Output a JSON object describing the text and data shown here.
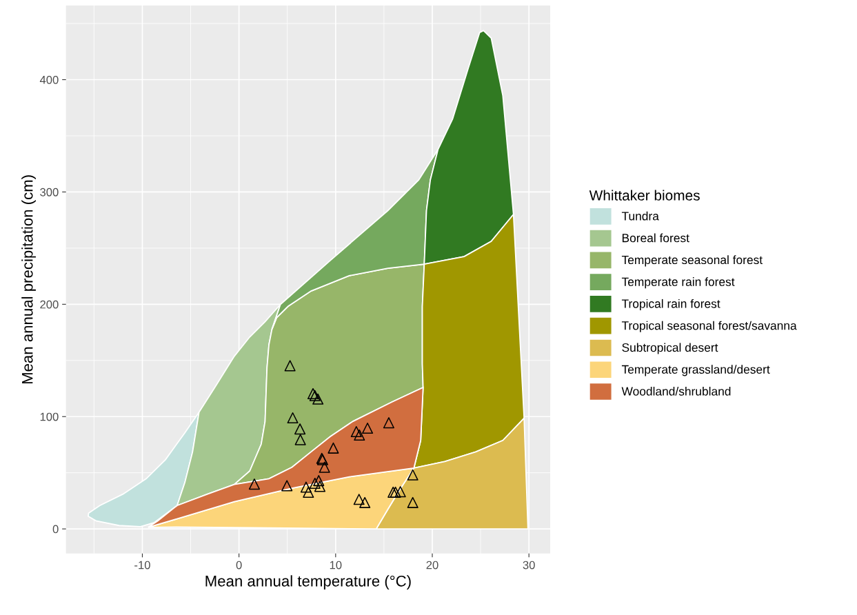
{
  "chart_data": {
    "type": "area",
    "xlabel": "Mean annual temperature (°C)",
    "ylabel": "Mean annual precipitation (cm)",
    "legend_title": "Whittaker biomes",
    "xlim": [
      -17.9,
      32.2
    ],
    "ylim": [
      -21.9,
      466
    ],
    "xticks": [
      -10,
      0,
      10,
      20,
      30
    ],
    "yticks": [
      0,
      100,
      200,
      300,
      400
    ],
    "grid": true,
    "legend": "right",
    "series": [
      {
        "name": "Tundra",
        "color": "#c1e1dd",
        "x": [
          -15.56,
          -14.4,
          -12,
          -9.6,
          -7.6,
          -5.6,
          -4.13,
          -4.8,
          -5.6,
          -6.4,
          -8.8,
          -10.2,
          -12.4,
          -14.8,
          -15.6
        ],
        "values": [
          14,
          20.8,
          31,
          44.7,
          61.7,
          85.6,
          104,
          68.6,
          41.3,
          20.8,
          5.5,
          2,
          3,
          7.2,
          11.3
        ]
      },
      {
        "name": "Boreal forest",
        "color": "#a5c790",
        "x": [
          -4.13,
          -2.46,
          -0.48,
          1.11,
          2.7,
          4.29,
          3.41,
          3.1,
          2.9,
          2.7,
          2.3,
          1.11,
          -0.48,
          -3.25,
          -6.4,
          -5.6,
          -4.8
        ],
        "values": [
          104,
          126.5,
          153.8,
          170.9,
          184.5,
          199.9,
          177.7,
          164,
          143.6,
          95.8,
          75.4,
          51.5,
          39.6,
          31,
          20.8,
          41.3,
          68.6
        ]
      },
      {
        "name": "Temperate seasonal forest",
        "color": "#97b669",
        "x": [
          3.41,
          3.89,
          5.08,
          7.46,
          11.4,
          15.4,
          19.17,
          18.97,
          18.97,
          19.05,
          15.8,
          11.8,
          9.44,
          7.46,
          5.48,
          3.1,
          -0.48,
          1.11,
          2.3,
          2.7,
          2.9,
          3.1
        ],
        "values": [
          177.7,
          188,
          198.2,
          211.8,
          225.4,
          232,
          235.7,
          198,
          147,
          125.9,
          112.9,
          95.8,
          82.2,
          68.6,
          54.9,
          44.7,
          39.6,
          51.5,
          75.4,
          95.8,
          143.6,
          164
        ]
      },
      {
        "name": "Temperate rain forest",
        "color": "#75a95e",
        "x": [
          4.29,
          9.44,
          15.4,
          18.6,
          20.6,
          19.8,
          19.4,
          19.17,
          15.4,
          11.4,
          7.46,
          5.08,
          3.89,
          3.41
        ],
        "values": [
          199.9,
          239,
          283.4,
          310.7,
          338,
          310.7,
          283.4,
          235.7,
          232,
          225.4,
          211.8,
          198.2,
          188,
          177.7
        ]
      },
      {
        "name": "Tropical rain forest",
        "color": "#317a22",
        "x": [
          20.6,
          22.1,
          23.7,
          24.9,
          25.3,
          26.1,
          27.3,
          28.4,
          26.1,
          23.3,
          19.17,
          19.4,
          19.8
        ],
        "values": [
          338,
          365,
          409.6,
          442,
          443.7,
          437,
          385.7,
          280,
          256,
          242.5,
          235.7,
          283.4,
          310.7
        ]
      },
      {
        "name": "Tropical seasonal forest/savanna",
        "color": "#a09700",
        "x": [
          19.17,
          23.3,
          26.1,
          28.4,
          29.5,
          27.3,
          24.5,
          21.3,
          18.1,
          18.8,
          19.05,
          18.97,
          18.97
        ],
        "values": [
          235.7,
          242.5,
          256,
          280,
          98.6,
          78.8,
          68.6,
          60,
          54.2,
          78.8,
          125.9,
          147,
          198
        ]
      },
      {
        "name": "Subtropical desert",
        "color": "#dcbb50",
        "x": [
          18.1,
          21.3,
          24.5,
          27.3,
          29.5,
          29.9,
          14.2,
          15.4,
          16.6
        ],
        "values": [
          54.2,
          60,
          68.6,
          78.8,
          98.6,
          0,
          0,
          17.4,
          34.4
        ]
      },
      {
        "name": "Temperate grassland/desert",
        "color": "#fcd57a",
        "x": [
          -9.4,
          -6.43,
          -0.48,
          5.48,
          11.4,
          18.1,
          16.6,
          15.4,
          14.2,
          1.5,
          -6.43
        ],
        "values": [
          1.4,
          8.9,
          24.2,
          36.2,
          46.4,
          54.2,
          34.4,
          17.4,
          0,
          1,
          1.7
        ]
      },
      {
        "name": "Woodland/shrubland",
        "color": "#d16e3f",
        "x": [
          -9.4,
          -8.4,
          -6.4,
          -3.25,
          -0.48,
          3.1,
          5.48,
          7.46,
          9.44,
          11.8,
          15.8,
          19.05,
          18.8,
          18.1,
          11.4,
          5.48,
          -0.48,
          -6.43
        ],
        "values": [
          1.4,
          7.2,
          20.8,
          31,
          39.6,
          44.7,
          54.9,
          68.6,
          82.2,
          95.8,
          112.9,
          125.9,
          78.8,
          54.2,
          46.4,
          36.2,
          24.2,
          8.9
        ]
      },
      {
        "type": "scatter",
        "marker": "triangle",
        "color": "#000000",
        "x": [
          5.28,
          7.66,
          7.86,
          8.17,
          5.56,
          6.31,
          6.35,
          15.5,
          12.14,
          13.3,
          12.46,
          9.76,
          8.57,
          8.65,
          8.85,
          1.59,
          4.96,
          6.94,
          7.18,
          7.86,
          8.25,
          8.37,
          17.98,
          12.42,
          13.02,
          15.95,
          16.19,
          16.7,
          17.98
        ],
        "values": [
          145.3,
          120.4,
          118.7,
          115.6,
          98.9,
          89,
          79.5,
          94.5,
          86.6,
          89.7,
          83.6,
          72,
          62.8,
          61.7,
          54.9,
          39.9,
          38.5,
          37.2,
          32.7,
          40.6,
          43,
          37.9,
          48.1,
          26.3,
          23.5,
          32.7,
          32.7,
          33.1,
          23.5
        ]
      }
    ]
  }
}
